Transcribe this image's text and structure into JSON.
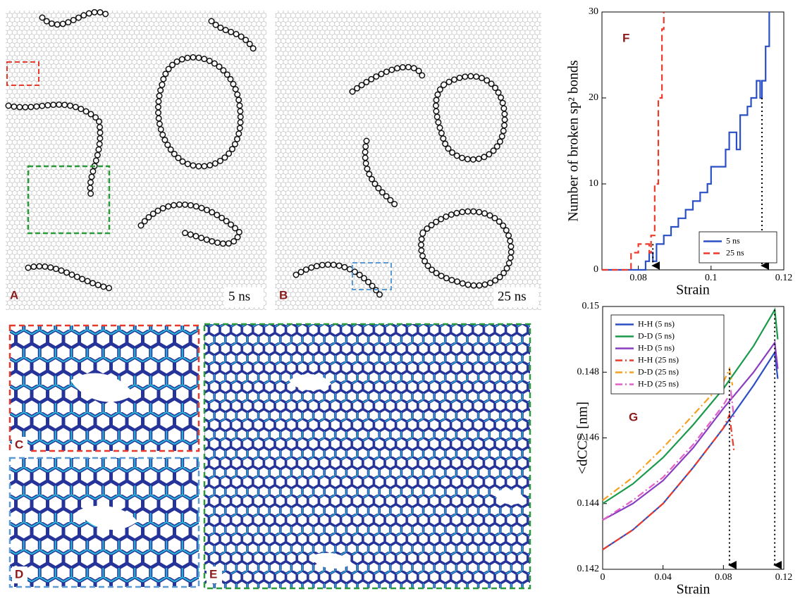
{
  "panels": {
    "a": {
      "label": "A",
      "time": "5 ns"
    },
    "b": {
      "label": "B",
      "time": "25 ns"
    },
    "c": {
      "label": "C"
    },
    "d": {
      "label": "D"
    },
    "e": {
      "label": "E"
    }
  },
  "chart_data": [
    {
      "type": "line",
      "panel_label": "F",
      "xlabel": "Strain",
      "ylabel": "Number of broken sp² bonds",
      "xlim": [
        0.07,
        0.12
      ],
      "xticks": [
        0.08,
        0.1,
        0.12
      ],
      "ylim": [
        0,
        30
      ],
      "yticks": [
        0,
        10,
        20,
        30
      ],
      "step": true,
      "legend": "lower right",
      "series": [
        {
          "name": "5 ns",
          "color": "#2b4fc4",
          "style": "solid",
          "x": [
            0.07,
            0.081,
            0.082,
            0.083,
            0.084,
            0.085,
            0.087,
            0.089,
            0.091,
            0.093,
            0.095,
            0.097,
            0.099,
            0.1,
            0.103,
            0.104,
            0.105,
            0.107,
            0.108,
            0.11,
            0.111,
            0.1125,
            0.1135,
            0.114,
            0.115,
            0.116
          ],
          "values": [
            0,
            0,
            1,
            2,
            1,
            3,
            4,
            5,
            6,
            7,
            8,
            9,
            10,
            12,
            12,
            14,
            16,
            14,
            18,
            19,
            20,
            22,
            20,
            22,
            26,
            30
          ]
        },
        {
          "name": "25 ns",
          "color": "#ee3a2a",
          "style": "dashed",
          "x": [
            0.07,
            0.077,
            0.078,
            0.08,
            0.082,
            0.083,
            0.0835,
            0.0845,
            0.0855,
            0.0865,
            0.087
          ],
          "values": [
            0,
            0,
            2,
            3,
            3,
            2,
            4,
            10,
            20,
            28,
            30
          ]
        }
      ],
      "markers": [
        {
          "x": 0.084,
          "y": 3
        },
        {
          "x": 0.114,
          "y": 20
        }
      ]
    },
    {
      "type": "line",
      "panel_label": "G",
      "xlabel": "Strain",
      "ylabel": "<dCC> [nm]",
      "xlim": [
        0,
        0.12
      ],
      "xticks": [
        0,
        0.04,
        0.08,
        0.12
      ],
      "ylim": [
        0.142,
        0.15
      ],
      "yticks": [
        0.142,
        0.144,
        0.146,
        0.148,
        0.15
      ],
      "step": false,
      "legend": "upper left",
      "series": [
        {
          "name": "H-H (5 ns)",
          "color": "#2b4fc4",
          "style": "solid",
          "x": [
            0,
            0.02,
            0.04,
            0.06,
            0.08,
            0.1,
            0.114,
            0.116
          ],
          "values": [
            0.1426,
            0.1432,
            0.144,
            0.1451,
            0.1463,
            0.1476,
            0.1486,
            0.1478
          ]
        },
        {
          "name": "D-D (5 ns)",
          "color": "#1a9a4a",
          "style": "solid",
          "x": [
            0,
            0.02,
            0.04,
            0.06,
            0.08,
            0.1,
            0.114,
            0.116
          ],
          "values": [
            0.144,
            0.1446,
            0.1454,
            0.1464,
            0.1475,
            0.1488,
            0.1499,
            0.149
          ]
        },
        {
          "name": "H-D (5 ns)",
          "color": "#8a3cc0",
          "style": "solid",
          "x": [
            0,
            0.02,
            0.04,
            0.06,
            0.08,
            0.1,
            0.114,
            0.116
          ],
          "values": [
            0.1435,
            0.144,
            0.1447,
            0.1457,
            0.1469,
            0.148,
            0.1489,
            0.1481
          ]
        },
        {
          "name": "H-H (25 ns)",
          "color": "#ee3a2a",
          "style": "dashdot",
          "x": [
            0,
            0.02,
            0.04,
            0.06,
            0.08,
            0.084,
            0.087
          ],
          "values": [
            0.1426,
            0.1432,
            0.144,
            0.1451,
            0.1463,
            0.1467,
            0.1456
          ]
        },
        {
          "name": "D-D (25 ns)",
          "color": "#f5a020",
          "style": "dashdot",
          "x": [
            0,
            0.02,
            0.04,
            0.06,
            0.08,
            0.084,
            0.086
          ],
          "values": [
            0.1441,
            0.1448,
            0.1457,
            0.1467,
            0.1477,
            0.1481,
            0.1476
          ]
        },
        {
          "name": "H-D (25 ns)",
          "color": "#e060c8",
          "style": "dashdot",
          "x": [
            0,
            0.02,
            0.04,
            0.06,
            0.08,
            0.085,
            0.087
          ],
          "values": [
            0.1435,
            0.1441,
            0.1448,
            0.1458,
            0.147,
            0.1474,
            0.1466
          ]
        }
      ],
      "markers": [
        {
          "x": 0.084,
          "y": 0.1481
        },
        {
          "x": 0.114,
          "y": 0.1499
        }
      ]
    }
  ]
}
